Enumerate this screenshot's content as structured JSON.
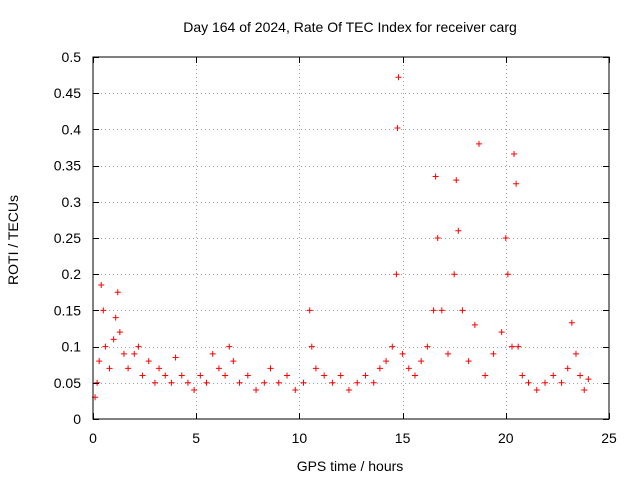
{
  "chart_data": {
    "type": "scatter",
    "title": "Day 164 of 2024, Rate Of TEC Index for receiver carg",
    "xlabel": "GPS time / hours",
    "ylabel": "ROTI / TECUs",
    "xlim": [
      0,
      25
    ],
    "ylim": [
      0,
      0.5
    ],
    "x_ticks": [
      0,
      5,
      10,
      15,
      20,
      25
    ],
    "x_tick_labels": [
      "0",
      "5",
      "10",
      "15",
      "20",
      "25"
    ],
    "y_ticks": [
      0,
      0.05,
      0.1,
      0.15,
      0.2,
      0.25,
      0.3,
      0.35,
      0.4,
      0.45,
      0.5
    ],
    "y_tick_labels": [
      "0",
      "0.05",
      "0.1",
      "0.15",
      "0.2",
      "0.25",
      "0.3",
      "0.35",
      "0.4",
      "0.45",
      "0.5"
    ],
    "grid": true,
    "marker": "+",
    "color": "#ff0000",
    "series": [
      {
        "name": "ROTI",
        "x": [
          0.1,
          0.2,
          0.3,
          0.4,
          0.5,
          0.6,
          0.8,
          1.0,
          1.1,
          1.2,
          1.3,
          1.5,
          1.7,
          2.0,
          2.2,
          2.4,
          2.7,
          3.0,
          3.2,
          3.5,
          3.8,
          4.0,
          4.3,
          4.6,
          4.9,
          5.2,
          5.5,
          5.8,
          6.1,
          6.4,
          6.6,
          6.8,
          7.1,
          7.5,
          7.9,
          8.3,
          8.6,
          9.0,
          9.4,
          9.8,
          10.2,
          10.5,
          10.6,
          10.8,
          11.2,
          11.6,
          12.0,
          12.4,
          12.8,
          13.2,
          13.6,
          13.9,
          14.2,
          14.5,
          14.7,
          14.75,
          14.8,
          15.0,
          15.3,
          15.6,
          15.9,
          16.2,
          16.5,
          16.6,
          16.7,
          16.9,
          17.2,
          17.5,
          17.6,
          17.7,
          17.9,
          18.2,
          18.5,
          18.7,
          19.0,
          19.4,
          19.8,
          20.0,
          20.1,
          20.3,
          20.4,
          20.5,
          20.6,
          20.8,
          21.1,
          21.5,
          21.9,
          22.3,
          22.7,
          23.0,
          23.2,
          23.4,
          23.6,
          23.8,
          24.0
        ],
        "y": [
          0.03,
          0.05,
          0.08,
          0.185,
          0.15,
          0.1,
          0.07,
          0.11,
          0.14,
          0.175,
          0.12,
          0.09,
          0.07,
          0.09,
          0.1,
          0.06,
          0.08,
          0.05,
          0.07,
          0.06,
          0.05,
          0.085,
          0.06,
          0.05,
          0.04,
          0.06,
          0.05,
          0.09,
          0.07,
          0.06,
          0.1,
          0.08,
          0.05,
          0.06,
          0.04,
          0.05,
          0.07,
          0.05,
          0.06,
          0.04,
          0.05,
          0.15,
          0.1,
          0.07,
          0.06,
          0.05,
          0.06,
          0.04,
          0.05,
          0.06,
          0.05,
          0.07,
          0.08,
          0.1,
          0.2,
          0.402,
          0.472,
          0.09,
          0.07,
          0.06,
          0.08,
          0.1,
          0.15,
          0.335,
          0.25,
          0.15,
          0.09,
          0.2,
          0.33,
          0.26,
          0.15,
          0.08,
          0.13,
          0.38,
          0.06,
          0.09,
          0.12,
          0.25,
          0.2,
          0.1,
          0.366,
          0.325,
          0.1,
          0.06,
          0.05,
          0.04,
          0.05,
          0.06,
          0.05,
          0.07,
          0.133,
          0.09,
          0.06,
          0.04,
          0.055
        ]
      }
    ]
  }
}
